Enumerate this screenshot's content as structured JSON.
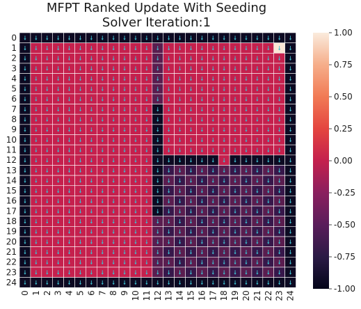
{
  "chart_data": {
    "type": "heatmap",
    "title": [
      "MFPT Ranked Update With Seeding",
      "Solver Iteration:1"
    ],
    "x_ticks": [
      "0",
      "1",
      "2",
      "3",
      "4",
      "5",
      "6",
      "7",
      "8",
      "9",
      "10",
      "11",
      "12",
      "13",
      "14",
      "15",
      "16",
      "17",
      "18",
      "19",
      "20",
      "21",
      "22",
      "23",
      "24"
    ],
    "y_ticks": [
      "0",
      "1",
      "2",
      "3",
      "4",
      "5",
      "6",
      "7",
      "8",
      "9",
      "10",
      "11",
      "12",
      "13",
      "14",
      "15",
      "16",
      "17",
      "18",
      "19",
      "20",
      "21",
      "22",
      "23",
      "24"
    ],
    "colorbar": {
      "vmin": -1.0,
      "vmax": 1.0,
      "ticks": [
        "1.00",
        "0.75",
        "0.50",
        "0.25",
        "0.00",
        "-0.25",
        "-0.50",
        "-0.75",
        "-1.00"
      ]
    },
    "cell_values": {
      "border": -1.0,
      "interior": -0.05,
      "column_12_rows_7_to_17": -1.0,
      "column_12_rows_1_to_6": -0.6,
      "lower_right_region_rows_12_to_23_cols_13_to_23": -0.35,
      "row_12_cols_13_to_23": -0.8,
      "goal_cell_row_1_col_23": 1.0
    },
    "colors": {
      "border": "#0d0a22",
      "interior": "#c5204d",
      "dark_region": "#5a1d4f",
      "darker_region": "#37174a",
      "goal": "#fbe6d6",
      "arrow": "#3fbfd0"
    }
  }
}
